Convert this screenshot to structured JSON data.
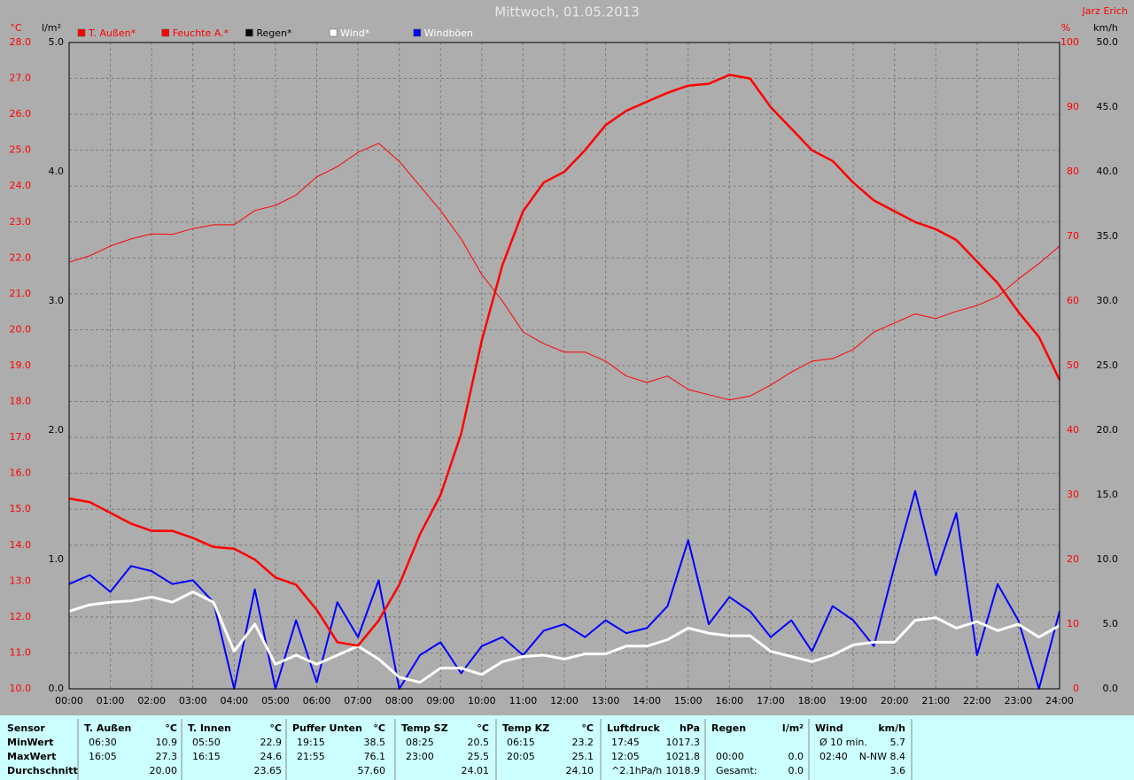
{
  "chart_data": {
    "type": "line",
    "title": "Mittwoch, 01.05.2013",
    "author": "Jarz Erich",
    "grid": true,
    "x": [
      0,
      0.5,
      1,
      1.5,
      2,
      2.5,
      3,
      3.5,
      4,
      4.5,
      5,
      5.5,
      6,
      6.5,
      7,
      7.5,
      8,
      8.5,
      9,
      9.5,
      10,
      10.5,
      11,
      11.5,
      12,
      12.5,
      13,
      13.5,
      14,
      14.5,
      15,
      15.5,
      16,
      16.5,
      17,
      17.5,
      18,
      18.5,
      19,
      19.5,
      20,
      20.5,
      21,
      21.5,
      22,
      22.5,
      23,
      23.5,
      24
    ],
    "xlim": [
      0,
      24
    ],
    "xticks": [
      {
        "value": 0,
        "label": "00:00"
      },
      {
        "value": 1,
        "label": "01:00"
      },
      {
        "value": 2,
        "label": "02:00"
      },
      {
        "value": 3,
        "label": "03:00"
      },
      {
        "value": 4,
        "label": "04:00"
      },
      {
        "value": 5,
        "label": "05:00"
      },
      {
        "value": 6,
        "label": "06:00"
      },
      {
        "value": 7,
        "label": "07:00"
      },
      {
        "value": 8,
        "label": "08:00"
      },
      {
        "value": 9,
        "label": "09:00"
      },
      {
        "value": 10,
        "label": "10:00"
      },
      {
        "value": 11,
        "label": "11:00"
      },
      {
        "value": 12,
        "label": "12:00"
      },
      {
        "value": 13,
        "label": "13:00"
      },
      {
        "value": 14,
        "label": "14:00"
      },
      {
        "value": 15,
        "label": "15:00"
      },
      {
        "value": 16,
        "label": "16:00"
      },
      {
        "value": 17,
        "label": "17:00"
      },
      {
        "value": 18,
        "label": "18:00"
      },
      {
        "value": 19,
        "label": "19:00"
      },
      {
        "value": 20,
        "label": "20:00"
      },
      {
        "value": 21,
        "label": "21:00"
      },
      {
        "value": 22,
        "label": "22:00"
      },
      {
        "value": 23,
        "label": "23:00"
      },
      {
        "value": 24,
        "label": "24:00"
      }
    ],
    "ylabel": "°C",
    "ylim": [
      10,
      28
    ],
    "yticks": [
      {
        "value": 10,
        "label": "10.0"
      },
      {
        "value": 11,
        "label": "11.0"
      },
      {
        "value": 12,
        "label": "12.0"
      },
      {
        "value": 13,
        "label": "13.0"
      },
      {
        "value": 14,
        "label": "14.0"
      },
      {
        "value": 15,
        "label": "15.0"
      },
      {
        "value": 16,
        "label": "16.0"
      },
      {
        "value": 17,
        "label": "17.0"
      },
      {
        "value": 18,
        "label": "18.0"
      },
      {
        "value": 19,
        "label": "19.0"
      },
      {
        "value": 20,
        "label": "20.0"
      },
      {
        "value": 21,
        "label": "21.0"
      },
      {
        "value": 22,
        "label": "22.0"
      },
      {
        "value": 23,
        "label": "23.0"
      },
      {
        "value": 24,
        "label": "24.0"
      },
      {
        "value": 25,
        "label": "25.0"
      },
      {
        "value": 26,
        "label": "26.0"
      },
      {
        "value": 27,
        "label": "27.0"
      },
      {
        "value": 28,
        "label": "28.0"
      }
    ],
    "y3label": "l/m²",
    "y3lim": [
      0,
      5
    ],
    "y3ticks": [
      {
        "value": 0,
        "label": "0.0"
      },
      {
        "value": 1,
        "label": "1.0"
      },
      {
        "value": 2,
        "label": "2.0"
      },
      {
        "value": 3,
        "label": "3.0"
      },
      {
        "value": 4,
        "label": "4.0"
      },
      {
        "value": 5,
        "label": "5.0"
      }
    ],
    "y2label": "%",
    "y2lim": [
      0,
      100
    ],
    "y2ticks": [
      0,
      10,
      20,
      30,
      40,
      50,
      60,
      70,
      80,
      90,
      100
    ],
    "y4label": "km/h",
    "y4lim": [
      0,
      50
    ],
    "y4ticks": [
      {
        "value": 0,
        "label": "0.0"
      },
      {
        "value": 5,
        "label": "5.0"
      },
      {
        "value": 10,
        "label": "10.0"
      },
      {
        "value": 15,
        "label": "15.0"
      },
      {
        "value": 20,
        "label": "20.0"
      },
      {
        "value": 25,
        "label": "25.0"
      },
      {
        "value": 30,
        "label": "30.0"
      },
      {
        "value": 35,
        "label": "35.0"
      },
      {
        "value": 40,
        "label": "40.0"
      },
      {
        "value": 45,
        "label": "45.0"
      },
      {
        "value": 50,
        "label": "50.0"
      }
    ],
    "series": [
      {
        "name": "T. Außen*",
        "color": "#ff0000",
        "width": 2.5,
        "axis": "y",
        "values": [
          15.3,
          15.2,
          14.9,
          14.6,
          14.4,
          14.4,
          14.2,
          13.95,
          13.9,
          13.6,
          13.1,
          12.9,
          12.2,
          11.3,
          11.2,
          11.9,
          12.9,
          14.3,
          15.4,
          17.1,
          19.7,
          21.8,
          23.3,
          24.1,
          24.4,
          25.0,
          25.7,
          26.1,
          26.35,
          26.6,
          26.8,
          26.85,
          27.1,
          27.0,
          26.2,
          25.6,
          25.0,
          24.7,
          24.1,
          23.6,
          23.3,
          23.0,
          22.8,
          22.5,
          21.9,
          21.3,
          20.5,
          19.8,
          18.6
        ]
      },
      {
        "name": "Feuchte A.*",
        "color": "#ff0000",
        "width": 1,
        "axis": "y2",
        "values": [
          66,
          67,
          68.5,
          69.6,
          70.4,
          70.3,
          71.2,
          71.8,
          71.8,
          74,
          74.8,
          76.4,
          79.2,
          80.8,
          83,
          84.4,
          81.6,
          77.8,
          74,
          69.6,
          64.1,
          60,
          55.2,
          53.4,
          52.1,
          52.1,
          50.7,
          48.4,
          47.4,
          48.4,
          46.3,
          45.5,
          44.7,
          45.3,
          47,
          49,
          50.7,
          51.1,
          52.5,
          55.2,
          56.6,
          58,
          57.3,
          58.4,
          59.3,
          60.7,
          63.4,
          65.8,
          68.5
        ]
      },
      {
        "name": "Regen*",
        "color": "#000000",
        "width": 1,
        "axis": "y3",
        "values": [
          0,
          0,
          0,
          0,
          0,
          0,
          0,
          0,
          0,
          0,
          0,
          0,
          0,
          0,
          0,
          0,
          0,
          0,
          0,
          0,
          0,
          0,
          0,
          0,
          0,
          0,
          0,
          0,
          0,
          0,
          0,
          0,
          0,
          0,
          0,
          0,
          0,
          0,
          0,
          0,
          0,
          0,
          0,
          0,
          0,
          0,
          0,
          0,
          0
        ]
      },
      {
        "name": "Wind*",
        "color": "#ffffff",
        "width": 3,
        "axis": "y4",
        "values": [
          6.0,
          6.5,
          6.7,
          6.8,
          7.1,
          6.7,
          7.5,
          6.7,
          2.9,
          5.0,
          1.9,
          2.6,
          1.9,
          2.6,
          3.3,
          2.3,
          0.9,
          0.5,
          1.6,
          1.6,
          1.1,
          2.1,
          2.5,
          2.6,
          2.3,
          2.7,
          2.7,
          3.3,
          3.3,
          3.8,
          4.7,
          4.3,
          4.1,
          4.1,
          2.9,
          2.5,
          2.1,
          2.6,
          3.4,
          3.6,
          3.6,
          5.3,
          5.5,
          4.7,
          5.2,
          4.5,
          5.0,
          4.0,
          4.9
        ]
      },
      {
        "name": "Windböen",
        "color": "#0000ff",
        "width": 2,
        "axis": "y4",
        "values": [
          8.1,
          8.8,
          7.5,
          9.5,
          9.1,
          8.1,
          8.4,
          6.7,
          0,
          7.7,
          0,
          5.3,
          0.5,
          6.7,
          4.0,
          8.4,
          0,
          2.6,
          3.6,
          1.2,
          3.3,
          4.0,
          2.6,
          4.5,
          5.0,
          4.0,
          5.3,
          4.3,
          4.7,
          6.4,
          11.5,
          5.0,
          7.1,
          6.0,
          4.0,
          5.3,
          2.9,
          6.4,
          5.3,
          3.3,
          9.5,
          15.3,
          8.8,
          13.6,
          2.6,
          8.1,
          5.3,
          0,
          6.0
        ]
      }
    ]
  },
  "table": {
    "labels": [
      "Sensor",
      "MinWert",
      "MaxWert",
      "Durchschnitt"
    ],
    "blocks": [
      {
        "title": "T. Außen",
        "unit": "°C",
        "rows": [
          {
            "time": "06:30",
            "value": "10.9"
          },
          {
            "time": "16:05",
            "value": "27.3"
          },
          {
            "value": "20.00"
          }
        ]
      },
      {
        "title": "T. Innen",
        "unit": "°C",
        "rows": [
          {
            "time": "05:50",
            "value": "22.9"
          },
          {
            "time": "16:15",
            "value": "24.6"
          },
          {
            "value": "23.65"
          }
        ]
      },
      {
        "title": "Puffer Unten",
        "unit": "°C",
        "rows": [
          {
            "time": "19:15",
            "value": "38.5"
          },
          {
            "time": "21:55",
            "value": "76.1"
          },
          {
            "value": "57.60"
          }
        ]
      },
      {
        "title": "Temp SZ",
        "unit": "°C",
        "rows": [
          {
            "time": "08:25",
            "value": "20.5"
          },
          {
            "time": "23:00",
            "value": "25.5"
          },
          {
            "value": "24.01"
          }
        ]
      },
      {
        "title": "Temp KZ",
        "unit": "°C",
        "rows": [
          {
            "time": "06:15",
            "value": "23.2"
          },
          {
            "time": "20:05",
            "value": "25.1"
          },
          {
            "value": "24.10"
          }
        ]
      },
      {
        "title": "Luftdruck",
        "unit": "hPa",
        "rows": [
          {
            "time": "17:45",
            "value": "1017.3"
          },
          {
            "time": "12:05",
            "value": "1021.8"
          },
          {
            "time": "^2.1hPa/h",
            "value": "1018.9"
          }
        ]
      },
      {
        "title": "Regen",
        "unit": "l/m²",
        "rows": [
          null,
          {
            "time": "00:00",
            "value": "0.0"
          },
          {
            "time": "Gesamt:",
            "value": "0.0"
          }
        ]
      },
      {
        "title": "Wind",
        "unit": "km/h",
        "rows": [
          {
            "time": "Ø 10 min.",
            "value": "5.7"
          },
          {
            "time": "02:40",
            "value": "N-NW 8.4"
          },
          {
            "value": "3.6"
          }
        ]
      }
    ]
  }
}
